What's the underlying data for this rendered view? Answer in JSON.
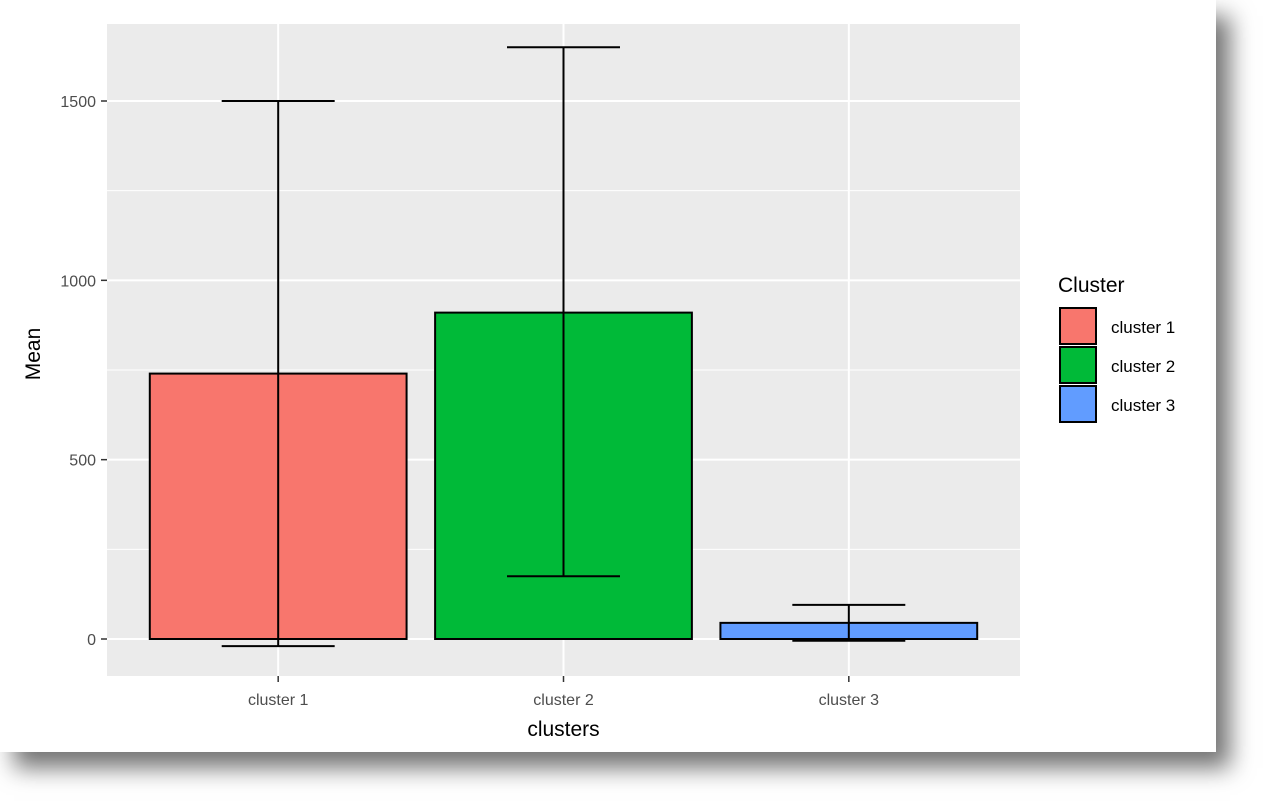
{
  "chart_data": {
    "type": "bar",
    "categories": [
      "cluster 1",
      "cluster 2",
      "cluster 3"
    ],
    "values": [
      740,
      910,
      45
    ],
    "error_bars": [
      {
        "category": "cluster 1",
        "lower": -20,
        "upper": 1500
      },
      {
        "category": "cluster 2",
        "lower": 175,
        "upper": 1650
      },
      {
        "category": "cluster 3",
        "lower": -5,
        "upper": 95
      }
    ],
    "colors": [
      "#F8766D",
      "#00BA38",
      "#619CFF"
    ],
    "xlabel": "clusters",
    "ylabel": "Mean",
    "ylim": [
      -100,
      1710
    ],
    "yticks": [
      0,
      500,
      1000,
      1500
    ],
    "y_tick_labels": [
      "0",
      "500",
      "1000",
      "1500"
    ],
    "grid": true,
    "legend": {
      "title": "Cluster",
      "position": "right",
      "entries": [
        "cluster 1",
        "cluster 2",
        "cluster 3"
      ]
    }
  },
  "theme": {
    "panel_background": "#EBEBEB",
    "grid_color": "#FFFFFF",
    "bar_outline": "#000000"
  }
}
